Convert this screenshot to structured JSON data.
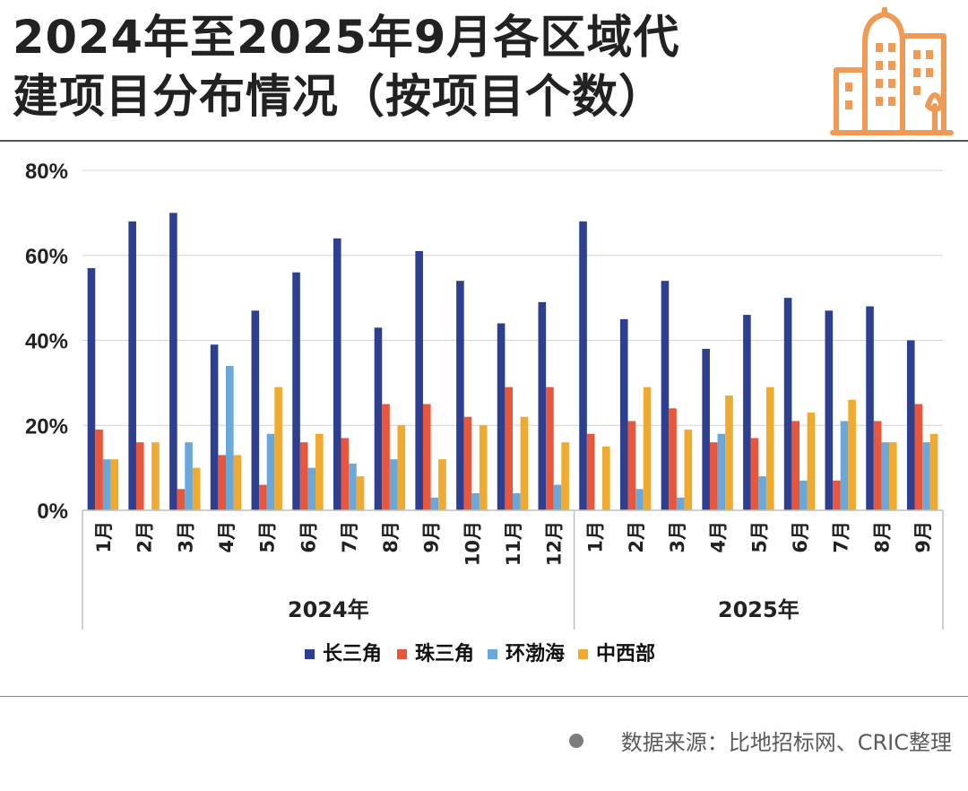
{
  "header": {
    "title_line1": "2024年至2025年9月各区域代",
    "title_line2": "建项目分布情况（按项目个数）",
    "logo_icon": "city-buildings-icon"
  },
  "footer": {
    "source": "数据来源：比地招标网、CRIC整理"
  },
  "colors": {
    "长三角": "#2f3f8f",
    "珠三角": "#e8573c",
    "环渤海": "#6aa8d9",
    "中西部": "#f0aa30",
    "logo": "#ef9a55"
  },
  "chart_data": {
    "type": "bar",
    "title": "2024年至2025年9月各区域代建项目分布情况（按项目个数）",
    "ylabel": "",
    "ylim": [
      0,
      80
    ],
    "yticks": [
      "0%",
      "20%",
      "40%",
      "60%",
      "80%"
    ],
    "grid": true,
    "legend_position": "bottom",
    "categories": [
      "1月",
      "2月",
      "3月",
      "4月",
      "5月",
      "6月",
      "7月",
      "8月",
      "9月",
      "10月",
      "11月",
      "12月",
      "1月",
      "2月",
      "3月",
      "4月",
      "5月",
      "6月",
      "7月",
      "8月",
      "9月"
    ],
    "groups": [
      {
        "label": "2024年",
        "count": 12
      },
      {
        "label": "2025年",
        "count": 9
      }
    ],
    "series": [
      {
        "name": "长三角",
        "values": [
          57,
          68,
          70,
          39,
          47,
          56,
          64,
          43,
          61,
          54,
          44,
          49,
          68,
          45,
          54,
          38,
          46,
          50,
          47,
          48,
          40
        ]
      },
      {
        "name": "珠三角",
        "values": [
          19,
          16,
          5,
          13,
          6,
          16,
          17,
          25,
          25,
          22,
          29,
          29,
          18,
          21,
          24,
          16,
          17,
          21,
          7,
          21,
          25
        ]
      },
      {
        "name": "环渤海",
        "values": [
          12,
          0,
          16,
          34,
          18,
          10,
          11,
          12,
          3,
          4,
          4,
          6,
          0,
          5,
          3,
          18,
          8,
          7,
          21,
          16,
          16
        ]
      },
      {
        "name": "中西部",
        "values": [
          12,
          16,
          10,
          13,
          29,
          18,
          8,
          20,
          12,
          20,
          22,
          16,
          15,
          29,
          19,
          27,
          29,
          23,
          26,
          16,
          18
        ]
      }
    ]
  }
}
